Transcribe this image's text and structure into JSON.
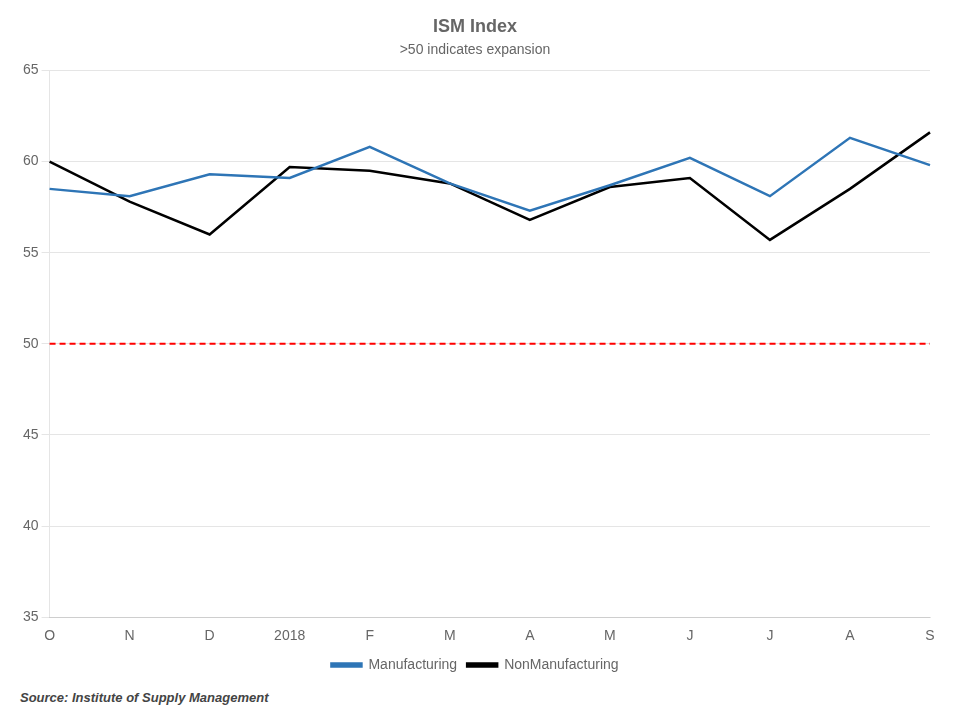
{
  "chart_data": {
    "type": "line",
    "title": "ISM Index",
    "subtitle": ">50 indicates expansion",
    "source": "Source: Institute of Supply Management",
    "categories": [
      "O",
      "N",
      "D",
      "2018",
      "F",
      "M",
      "A",
      "M",
      "J",
      "J",
      "A",
      "S"
    ],
    "series": [
      {
        "name": "Manufacturing",
        "color": "#2E75B6",
        "values": [
          58.5,
          58.1,
          59.3,
          59.1,
          60.8,
          58.8,
          57.3,
          58.7,
          60.2,
          58.1,
          61.3,
          59.8
        ]
      },
      {
        "name": "NonManufacturing",
        "color": "#000000",
        "values": [
          60.0,
          57.8,
          56.0,
          59.7,
          59.5,
          58.8,
          56.8,
          58.6,
          59.1,
          55.7,
          58.5,
          61.6
        ]
      }
    ],
    "reference_lines": [
      {
        "value": 50,
        "color": "#FF0000",
        "line_style": "dashed"
      }
    ],
    "ylim": [
      35,
      65
    ],
    "yticks": [
      35,
      40,
      45,
      50,
      55,
      60,
      65
    ],
    "grid": true,
    "legend": "bottom"
  }
}
